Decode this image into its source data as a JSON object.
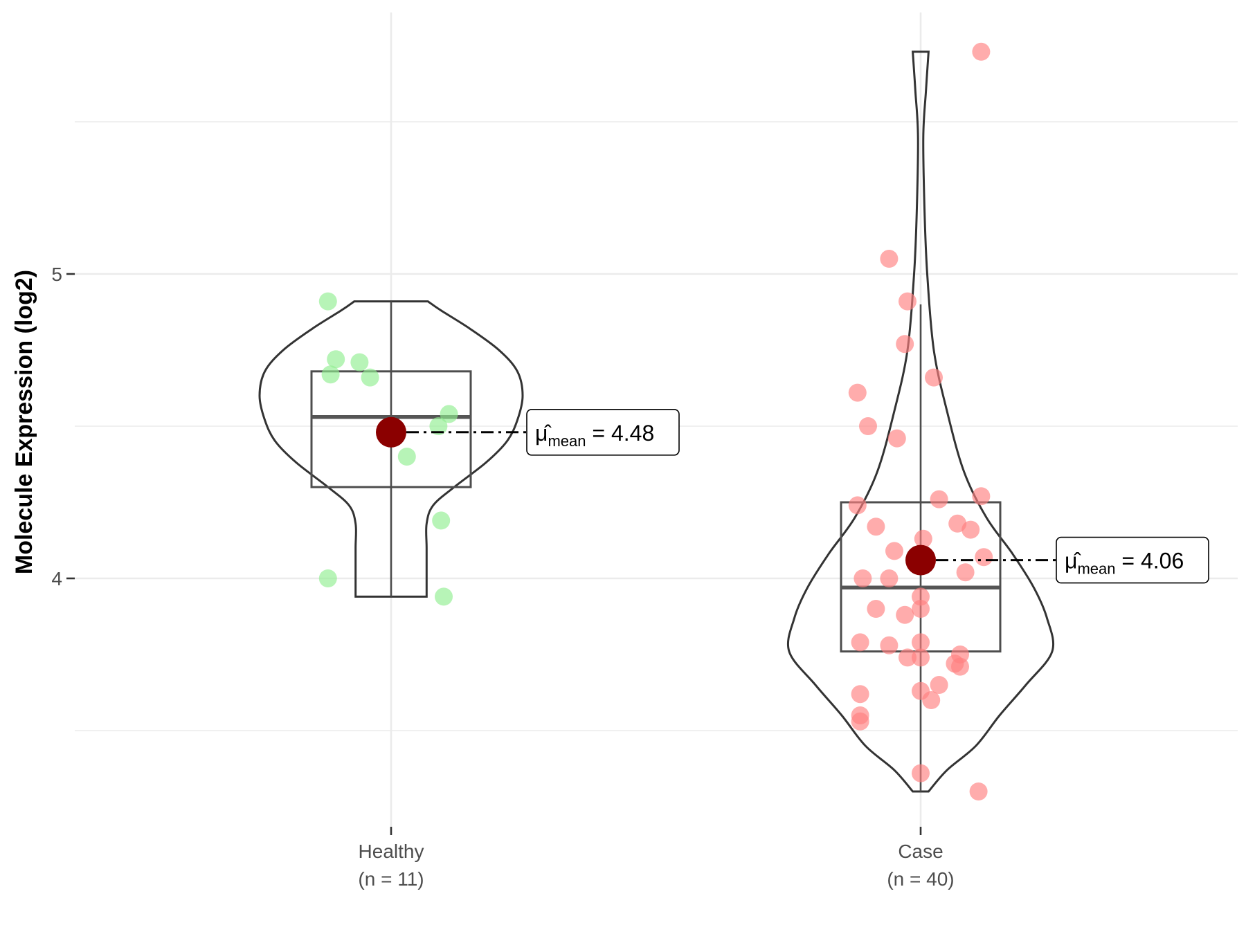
{
  "chart_data": {
    "type": "violin",
    "title": "",
    "xlabel": "",
    "ylabel": "Molecule Expression (log2)",
    "ylim": [
      3.2,
      5.8
    ],
    "yticks": [
      4,
      5
    ],
    "grid": true,
    "groups": [
      {
        "name": "Healthy",
        "n_label": "(n = 11)",
        "color": "#90ee90",
        "mean": 4.48,
        "mean_label": "4.48",
        "box": {
          "q1": 4.3,
          "median": 4.53,
          "q3": 4.68,
          "whisker_low": 3.94,
          "whisker_high": 4.91
        },
        "violin_range": [
          3.94,
          4.91
        ],
        "violin_profile": [
          [
            3.94,
            0.27
          ],
          [
            4.0,
            0.27
          ],
          [
            4.1,
            0.27
          ],
          [
            4.18,
            0.27
          ],
          [
            4.24,
            0.32
          ],
          [
            4.3,
            0.48
          ],
          [
            4.38,
            0.72
          ],
          [
            4.45,
            0.88
          ],
          [
            4.52,
            0.96
          ],
          [
            4.6,
            1.0
          ],
          [
            4.68,
            0.96
          ],
          [
            4.75,
            0.82
          ],
          [
            4.82,
            0.6
          ],
          [
            4.88,
            0.38
          ],
          [
            4.91,
            0.28
          ]
        ],
        "points": [
          {
            "x": -0.24,
            "y": 4.91
          },
          {
            "x": -0.21,
            "y": 4.72
          },
          {
            "x": -0.12,
            "y": 4.71
          },
          {
            "x": -0.23,
            "y": 4.67
          },
          {
            "x": -0.08,
            "y": 4.66
          },
          {
            "x": 0.22,
            "y": 4.54
          },
          {
            "x": 0.18,
            "y": 4.5
          },
          {
            "x": 0.06,
            "y": 4.4
          },
          {
            "x": 0.19,
            "y": 4.19
          },
          {
            "x": -0.24,
            "y": 4.0
          },
          {
            "x": 0.2,
            "y": 3.94
          }
        ]
      },
      {
        "name": "Case",
        "n_label": "(n = 40)",
        "color": "#ff7f7f",
        "mean": 4.06,
        "mean_label": "4.06",
        "box": {
          "q1": 3.76,
          "median": 3.97,
          "q3": 4.25,
          "whisker_low": 3.3,
          "whisker_high": 4.9
        },
        "violin_range": [
          3.3,
          5.73
        ],
        "violin_profile": [
          [
            3.3,
            0.06
          ],
          [
            3.37,
            0.2
          ],
          [
            3.45,
            0.42
          ],
          [
            3.55,
            0.6
          ],
          [
            3.65,
            0.8
          ],
          [
            3.76,
            1.0
          ],
          [
            3.87,
            0.96
          ],
          [
            3.97,
            0.86
          ],
          [
            4.08,
            0.7
          ],
          [
            4.2,
            0.5
          ],
          [
            4.35,
            0.33
          ],
          [
            4.55,
            0.2
          ],
          [
            4.75,
            0.1
          ],
          [
            5.0,
            0.05
          ],
          [
            5.2,
            0.03
          ],
          [
            5.45,
            0.02
          ],
          [
            5.6,
            0.04
          ],
          [
            5.73,
            0.06
          ]
        ],
        "points": [
          {
            "x": 0.23,
            "y": 5.73
          },
          {
            "x": -0.12,
            "y": 5.05
          },
          {
            "x": -0.05,
            "y": 4.91
          },
          {
            "x": -0.06,
            "y": 4.77
          },
          {
            "x": 0.05,
            "y": 4.66
          },
          {
            "x": -0.24,
            "y": 4.61
          },
          {
            "x": -0.2,
            "y": 4.5
          },
          {
            "x": -0.09,
            "y": 4.46
          },
          {
            "x": 0.23,
            "y": 4.27
          },
          {
            "x": 0.07,
            "y": 4.26
          },
          {
            "x": -0.24,
            "y": 4.24
          },
          {
            "x": 0.14,
            "y": 4.18
          },
          {
            "x": -0.17,
            "y": 4.17
          },
          {
            "x": 0.19,
            "y": 4.16
          },
          {
            "x": 0.01,
            "y": 4.13
          },
          {
            "x": -0.1,
            "y": 4.09
          },
          {
            "x": 0.24,
            "y": 4.07
          },
          {
            "x": 0.17,
            "y": 4.02
          },
          {
            "x": -0.22,
            "y": 4.0
          },
          {
            "x": -0.12,
            "y": 4.0
          },
          {
            "x": 0.0,
            "y": 3.94
          },
          {
            "x": -0.17,
            "y": 3.9
          },
          {
            "x": 0.0,
            "y": 3.9
          },
          {
            "x": -0.06,
            "y": 3.88
          },
          {
            "x": -0.23,
            "y": 3.79
          },
          {
            "x": -0.12,
            "y": 3.78
          },
          {
            "x": 0.0,
            "y": 3.79
          },
          {
            "x": 0.15,
            "y": 3.75
          },
          {
            "x": -0.05,
            "y": 3.74
          },
          {
            "x": 0.13,
            "y": 3.72
          },
          {
            "x": 0.15,
            "y": 3.71
          },
          {
            "x": 0.0,
            "y": 3.74
          },
          {
            "x": 0.07,
            "y": 3.65
          },
          {
            "x": 0.0,
            "y": 3.63
          },
          {
            "x": -0.23,
            "y": 3.62
          },
          {
            "x": 0.04,
            "y": 3.6
          },
          {
            "x": -0.23,
            "y": 3.55
          },
          {
            "x": -0.23,
            "y": 3.53
          },
          {
            "x": 0.0,
            "y": 3.36
          },
          {
            "x": 0.22,
            "y": 3.3
          }
        ]
      }
    ],
    "annotation_label": "mean",
    "annotation_symbol": "μ̂",
    "colors": {
      "mean_point": "#8b0000",
      "outline": "#333333",
      "grid": "#ebebeb"
    }
  }
}
